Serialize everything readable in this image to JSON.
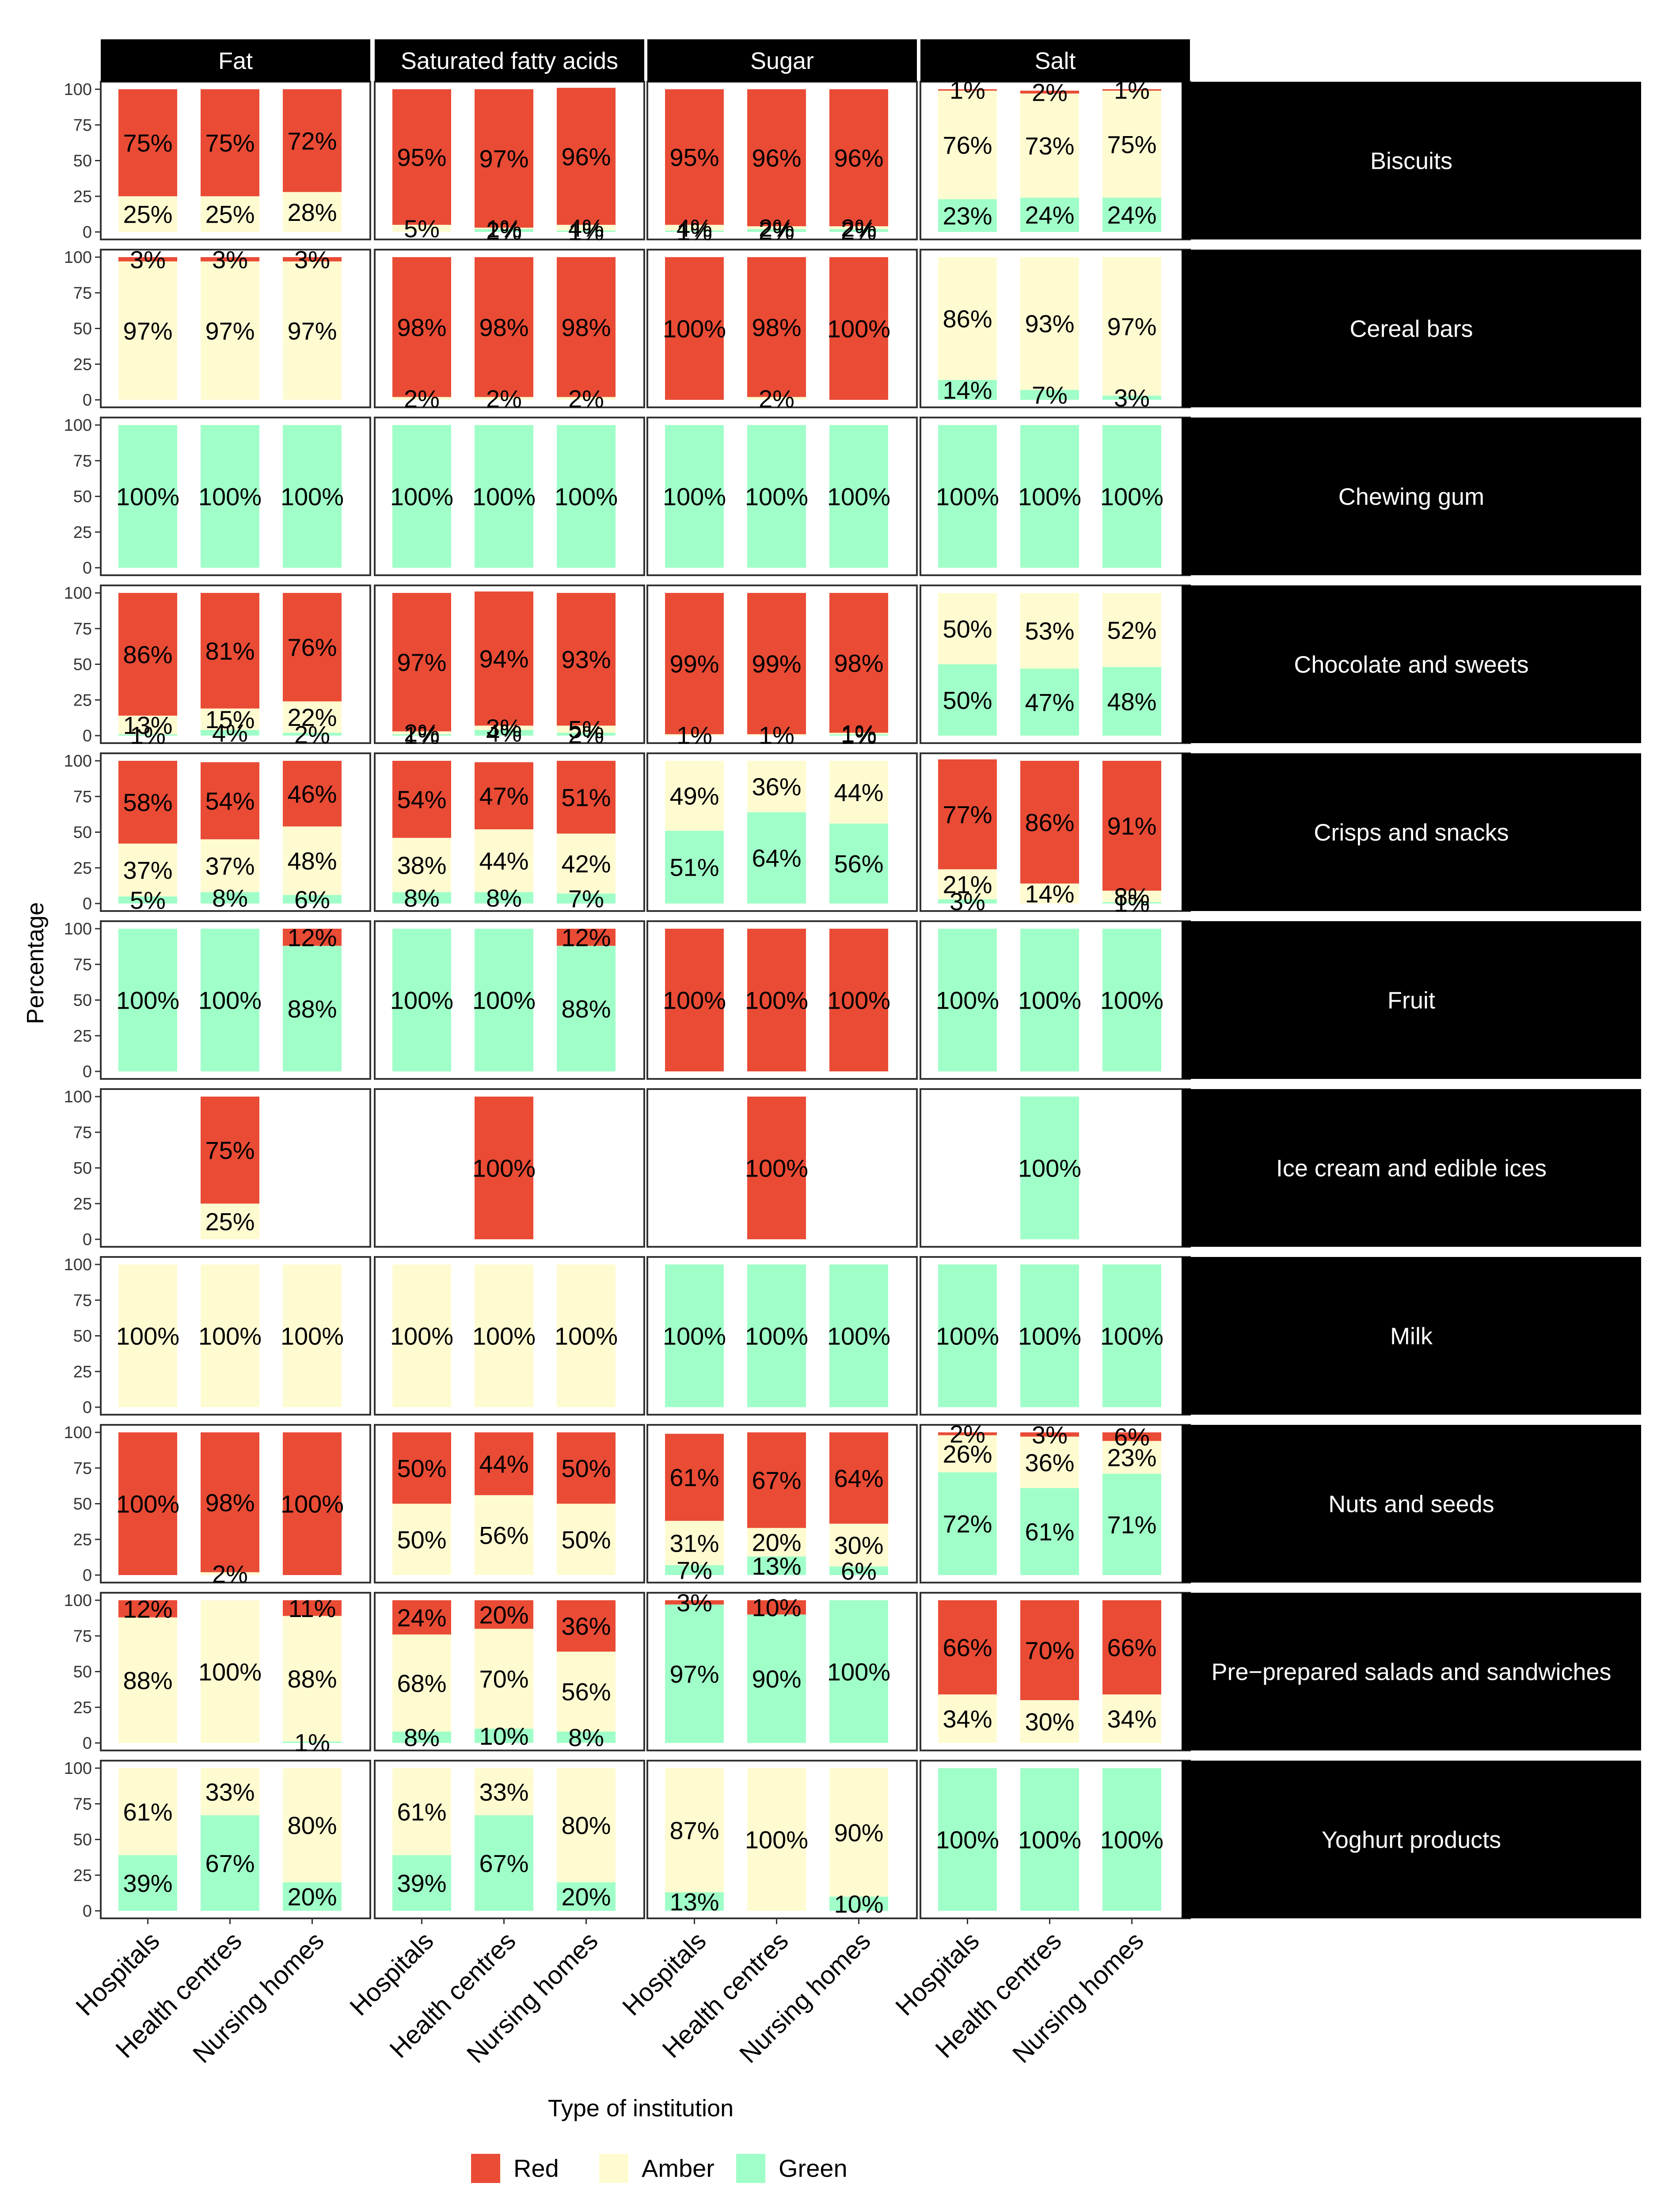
{
  "chart_data": {
    "type": "bar",
    "stacked": true,
    "xlabel": "Type of institution",
    "ylabel": "Percentage",
    "ylim": [
      0,
      100
    ],
    "yticks": [
      0,
      25,
      50,
      75,
      100
    ],
    "nutrients": [
      "Fat",
      "Saturated fatty acids",
      "Sugar",
      "Salt"
    ],
    "categories": [
      "Hospitals",
      "Health centres",
      "Nursing homes"
    ],
    "legend": [
      {
        "name": "Red",
        "color": "#E94B35"
      },
      {
        "name": "Amber",
        "color": "#FFFBD1"
      },
      {
        "name": "Green",
        "color": "#A0FFC8"
      }
    ],
    "rows": [
      {
        "label": "Biscuits",
        "cells": [
          [
            {
              "red": 75,
              "amber": 25,
              "green": 0
            },
            {
              "red": 75,
              "amber": 25,
              "green": 0
            },
            {
              "red": 72,
              "amber": 28,
              "green": 0
            }
          ],
          [
            {
              "red": 95,
              "amber": 5,
              "green": 0
            },
            {
              "red": 97,
              "amber": 1,
              "green": 2
            },
            {
              "red": 96,
              "amber": 4,
              "green": 1
            }
          ],
          [
            {
              "red": 95,
              "amber": 4,
              "green": 1
            },
            {
              "red": 96,
              "amber": 2,
              "green": 2
            },
            {
              "red": 96,
              "amber": 2,
              "green": 2
            }
          ],
          [
            {
              "red": 1,
              "amber": 76,
              "green": 23
            },
            {
              "red": 2,
              "amber": 73,
              "green": 24
            },
            {
              "red": 1,
              "amber": 75,
              "green": 24
            }
          ]
        ]
      },
      {
        "label": "Cereal bars",
        "cells": [
          [
            {
              "red": 3,
              "amber": 97,
              "green": 0
            },
            {
              "red": 3,
              "amber": 97,
              "green": 0
            },
            {
              "red": 3,
              "amber": 97,
              "green": 0
            }
          ],
          [
            {
              "red": 98,
              "amber": 2,
              "green": 0
            },
            {
              "red": 98,
              "amber": 2,
              "green": 0
            },
            {
              "red": 98,
              "amber": 2,
              "green": 0
            }
          ],
          [
            {
              "red": 100,
              "amber": 0,
              "green": 0
            },
            {
              "red": 98,
              "amber": 2,
              "green": 0
            },
            {
              "red": 100,
              "amber": 0,
              "green": 0
            }
          ],
          [
            {
              "red": 0,
              "amber": 86,
              "green": 14
            },
            {
              "red": 0,
              "amber": 93,
              "green": 7
            },
            {
              "red": 0,
              "amber": 97,
              "green": 3
            }
          ]
        ]
      },
      {
        "label": "Chewing gum",
        "cells": [
          [
            {
              "red": 0,
              "amber": 0,
              "green": 100
            },
            {
              "red": 0,
              "amber": 0,
              "green": 100
            },
            {
              "red": 0,
              "amber": 0,
              "green": 100
            }
          ],
          [
            {
              "red": 0,
              "amber": 0,
              "green": 100
            },
            {
              "red": 0,
              "amber": 0,
              "green": 100
            },
            {
              "red": 0,
              "amber": 0,
              "green": 100
            }
          ],
          [
            {
              "red": 0,
              "amber": 0,
              "green": 100
            },
            {
              "red": 0,
              "amber": 0,
              "green": 100
            },
            {
              "red": 0,
              "amber": 0,
              "green": 100
            }
          ],
          [
            {
              "red": 0,
              "amber": 0,
              "green": 100
            },
            {
              "red": 0,
              "amber": 0,
              "green": 100
            },
            {
              "red": 0,
              "amber": 0,
              "green": 100
            }
          ]
        ]
      },
      {
        "label": "Chocolate and sweets",
        "cells": [
          [
            {
              "red": 86,
              "amber": 13,
              "green": 1
            },
            {
              "red": 81,
              "amber": 15,
              "green": 4
            },
            {
              "red": 76,
              "amber": 22,
              "green": 2
            }
          ],
          [
            {
              "red": 97,
              "amber": 2,
              "green": 1
            },
            {
              "red": 94,
              "amber": 3,
              "green": 4
            },
            {
              "red": 93,
              "amber": 5,
              "green": 2
            }
          ],
          [
            {
              "red": 99,
              "amber": 1,
              "green": 0
            },
            {
              "red": 99,
              "amber": 1,
              "green": 0
            },
            {
              "red": 98,
              "amber": 1,
              "green": 1
            }
          ],
          [
            {
              "red": 0,
              "amber": 50,
              "green": 50
            },
            {
              "red": 0,
              "amber": 53,
              "green": 47
            },
            {
              "red": 0,
              "amber": 52,
              "green": 48
            }
          ]
        ]
      },
      {
        "label": "Crisps and snacks",
        "cells": [
          [
            {
              "red": 58,
              "amber": 37,
              "green": 5
            },
            {
              "red": 54,
              "amber": 37,
              "green": 8
            },
            {
              "red": 46,
              "amber": 48,
              "green": 6
            }
          ],
          [
            {
              "red": 54,
              "amber": 38,
              "green": 8
            },
            {
              "red": 47,
              "amber": 44,
              "green": 8
            },
            {
              "red": 51,
              "amber": 42,
              "green": 7
            }
          ],
          [
            {
              "red": 0,
              "amber": 49,
              "green": 51
            },
            {
              "red": 0,
              "amber": 36,
              "green": 64
            },
            {
              "red": 0,
              "amber": 44,
              "green": 56
            }
          ],
          [
            {
              "red": 77,
              "amber": 21,
              "green": 3
            },
            {
              "red": 86,
              "amber": 14,
              "green": 0
            },
            {
              "red": 91,
              "amber": 8,
              "green": 1
            }
          ]
        ]
      },
      {
        "label": "Fruit",
        "cells": [
          [
            {
              "red": 0,
              "amber": 0,
              "green": 100
            },
            {
              "red": 0,
              "amber": 0,
              "green": 100
            },
            {
              "red": 12,
              "amber": 0,
              "green": 88
            }
          ],
          [
            {
              "red": 0,
              "amber": 0,
              "green": 100
            },
            {
              "red": 0,
              "amber": 0,
              "green": 100
            },
            {
              "red": 12,
              "amber": 0,
              "green": 88
            }
          ],
          [
            {
              "red": 100,
              "amber": 0,
              "green": 0
            },
            {
              "red": 100,
              "amber": 0,
              "green": 0
            },
            {
              "red": 100,
              "amber": 0,
              "green": 0
            }
          ],
          [
            {
              "red": 0,
              "amber": 0,
              "green": 100
            },
            {
              "red": 0,
              "amber": 0,
              "green": 100
            },
            {
              "red": 0,
              "amber": 0,
              "green": 100
            }
          ]
        ]
      },
      {
        "label": "Ice cream and edible ices",
        "cells": [
          [
            null,
            {
              "red": 75,
              "amber": 25,
              "green": 0
            },
            null
          ],
          [
            null,
            {
              "red": 100,
              "amber": 0,
              "green": 0
            },
            null
          ],
          [
            null,
            {
              "red": 100,
              "amber": 0,
              "green": 0
            },
            null
          ],
          [
            null,
            {
              "red": 0,
              "amber": 0,
              "green": 100
            },
            null
          ]
        ]
      },
      {
        "label": "Milk",
        "cells": [
          [
            {
              "red": 0,
              "amber": 100,
              "green": 0
            },
            {
              "red": 0,
              "amber": 100,
              "green": 0
            },
            {
              "red": 0,
              "amber": 100,
              "green": 0
            }
          ],
          [
            {
              "red": 0,
              "amber": 100,
              "green": 0
            },
            {
              "red": 0,
              "amber": 100,
              "green": 0
            },
            {
              "red": 0,
              "amber": 100,
              "green": 0
            }
          ],
          [
            {
              "red": 0,
              "amber": 0,
              "green": 100
            },
            {
              "red": 0,
              "amber": 0,
              "green": 100
            },
            {
              "red": 0,
              "amber": 0,
              "green": 100
            }
          ],
          [
            {
              "red": 0,
              "amber": 0,
              "green": 100
            },
            {
              "red": 0,
              "amber": 0,
              "green": 100
            },
            {
              "red": 0,
              "amber": 0,
              "green": 100
            }
          ]
        ]
      },
      {
        "label": "Nuts and seeds",
        "cells": [
          [
            {
              "red": 100,
              "amber": 0,
              "green": 0
            },
            {
              "red": 98,
              "amber": 2,
              "green": 0
            },
            {
              "red": 100,
              "amber": 0,
              "green": 0
            }
          ],
          [
            {
              "red": 50,
              "amber": 50,
              "green": 0
            },
            {
              "red": 44,
              "amber": 56,
              "green": 0
            },
            {
              "red": 50,
              "amber": 50,
              "green": 0
            }
          ],
          [
            {
              "red": 61,
              "amber": 31,
              "green": 7
            },
            {
              "red": 67,
              "amber": 20,
              "green": 13
            },
            {
              "red": 64,
              "amber": 30,
              "green": 6
            }
          ],
          [
            {
              "red": 2,
              "amber": 26,
              "green": 72
            },
            {
              "red": 3,
              "amber": 36,
              "green": 61
            },
            {
              "red": 6,
              "amber": 23,
              "green": 71
            }
          ]
        ]
      },
      {
        "label": "Pre−prepared salads and sandwiches",
        "cells": [
          [
            {
              "red": 12,
              "amber": 88,
              "green": 0
            },
            {
              "red": 0,
              "amber": 100,
              "green": 0
            },
            {
              "red": 11,
              "amber": 88,
              "green": 1
            }
          ],
          [
            {
              "red": 24,
              "amber": 68,
              "green": 8
            },
            {
              "red": 20,
              "amber": 70,
              "green": 10
            },
            {
              "red": 36,
              "amber": 56,
              "green": 8
            }
          ],
          [
            {
              "red": 3,
              "amber": 0,
              "green": 97
            },
            {
              "red": 10,
              "amber": 0,
              "green": 90
            },
            {
              "red": 0,
              "amber": 0,
              "green": 100
            }
          ],
          [
            {
              "red": 66,
              "amber": 34,
              "green": 0
            },
            {
              "red": 70,
              "amber": 30,
              "green": 0
            },
            {
              "red": 66,
              "amber": 34,
              "green": 0
            }
          ]
        ]
      },
      {
        "label": "Yoghurt products",
        "cells": [
          [
            {
              "red": 0,
              "amber": 61,
              "green": 39
            },
            {
              "red": 0,
              "amber": 33,
              "green": 67
            },
            {
              "red": 0,
              "amber": 80,
              "green": 20
            }
          ],
          [
            {
              "red": 0,
              "amber": 61,
              "green": 39
            },
            {
              "red": 0,
              "amber": 33,
              "green": 67
            },
            {
              "red": 0,
              "amber": 80,
              "green": 20
            }
          ],
          [
            {
              "red": 0,
              "amber": 87,
              "green": 13
            },
            {
              "red": 0,
              "amber": 100,
              "green": 0
            },
            {
              "red": 0,
              "amber": 90,
              "green": 10
            }
          ],
          [
            {
              "red": 0,
              "amber": 0,
              "green": 100
            },
            {
              "red": 0,
              "amber": 0,
              "green": 100
            },
            {
              "red": 0,
              "amber": 0,
              "green": 100
            }
          ]
        ]
      }
    ]
  }
}
